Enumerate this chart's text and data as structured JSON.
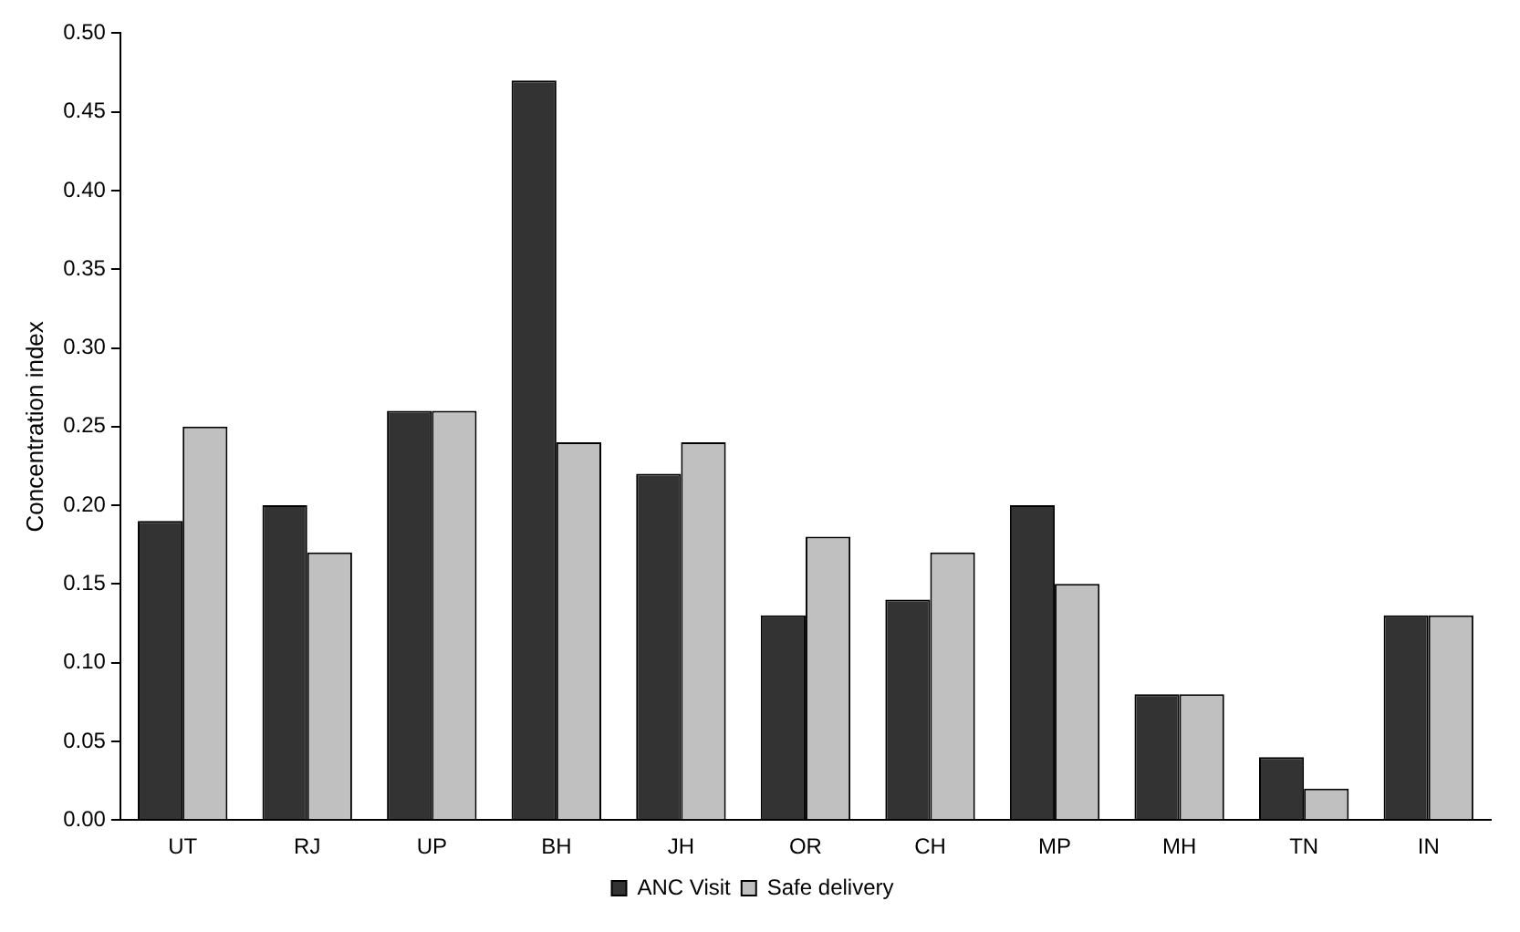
{
  "chart_data": {
    "type": "bar",
    "ylabel": "Concentration index",
    "categories": [
      "UT",
      "RJ",
      "UP",
      "BH",
      "JH",
      "OR",
      "CH",
      "MP",
      "MH",
      "TN",
      "IN"
    ],
    "series": [
      {
        "name": "ANC Visit",
        "color": "#333333",
        "values": [
          0.19,
          0.2,
          0.26,
          0.47,
          0.22,
          0.13,
          0.14,
          0.2,
          0.08,
          0.04,
          0.13
        ]
      },
      {
        "name": "Safe delivery",
        "color": "#c0c0c0",
        "values": [
          0.25,
          0.17,
          0.26,
          0.24,
          0.24,
          0.18,
          0.17,
          0.15,
          0.08,
          0.02,
          0.13
        ]
      }
    ],
    "ylim": [
      0,
      0.5
    ],
    "yticks": [
      {
        "value": 0,
        "label": "0.00"
      },
      {
        "value": 0.05,
        "label": "0.05"
      },
      {
        "value": 0.1,
        "label": "0.10"
      },
      {
        "value": 0.15,
        "label": "0.15"
      },
      {
        "value": 0.2,
        "label": "0.20"
      },
      {
        "value": 0.25,
        "label": "0.25"
      },
      {
        "value": 0.3,
        "label": "0.30"
      },
      {
        "value": 0.35,
        "label": "0.35"
      },
      {
        "value": 0.4,
        "label": "0.40"
      },
      {
        "value": 0.45,
        "label": "0.45"
      },
      {
        "value": 0.5,
        "label": "0.50"
      }
    ],
    "grid": false,
    "legend": "bottom"
  }
}
